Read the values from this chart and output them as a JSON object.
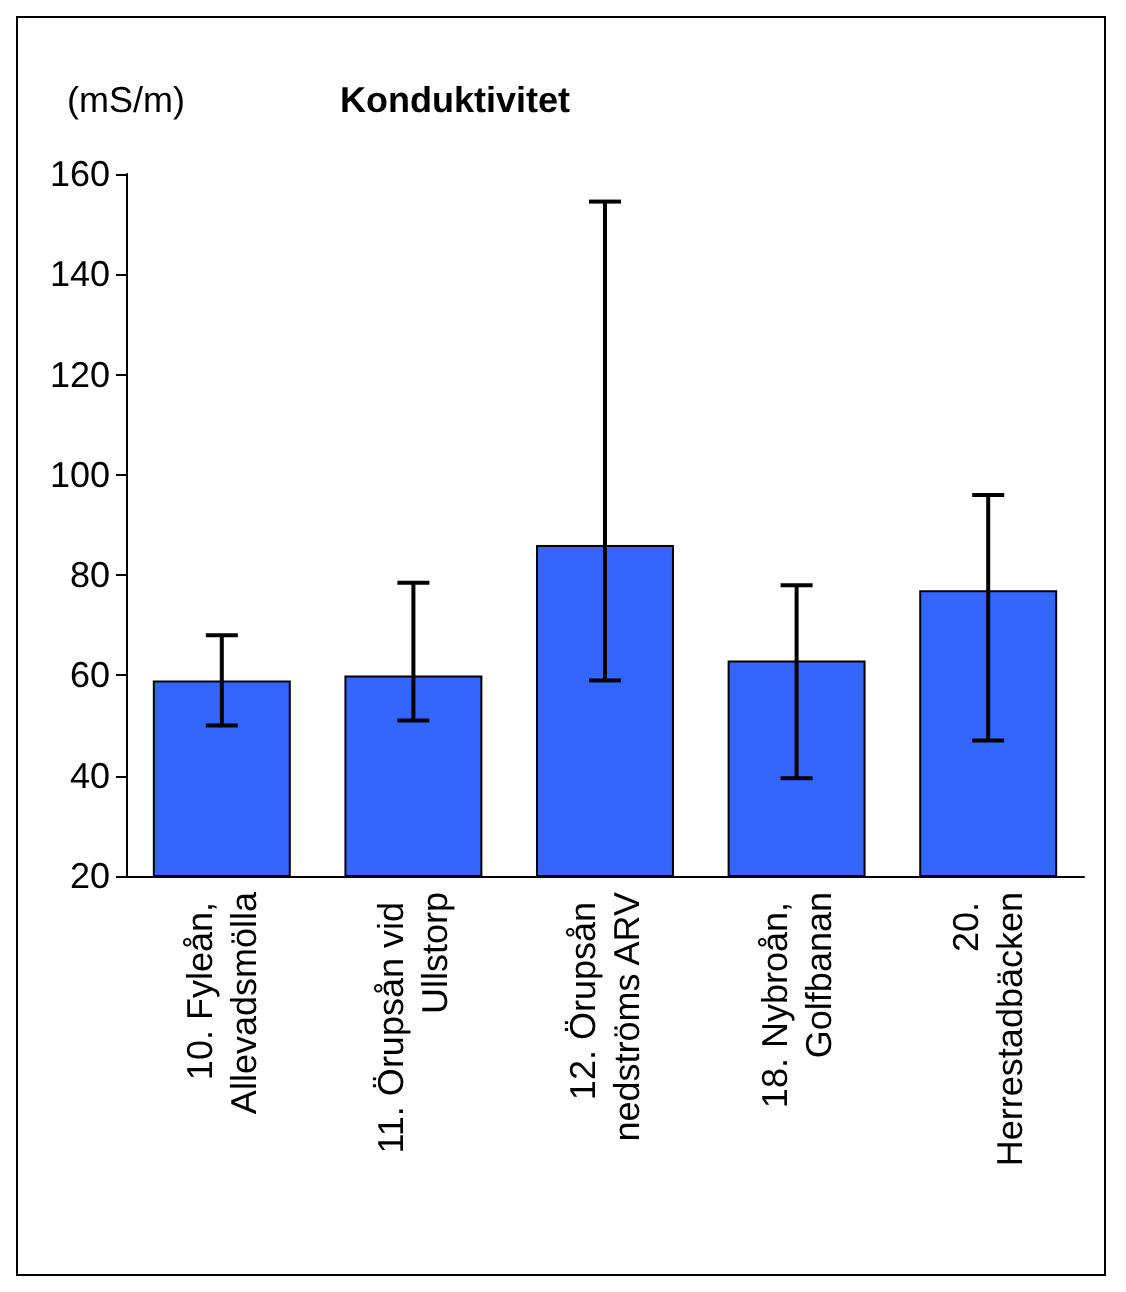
{
  "chart_data": {
    "type": "bar",
    "title": "Konduktivitet",
    "ylabel": "(mS/m)",
    "categories": [
      "10. Fyleån, Allevadsmölla",
      "11. Örupsån vid Ullstorp",
      "12. Örupsån nedströms ARV",
      "18. Nybroån, Golfbanan",
      "20. Herrestadbäcken"
    ],
    "values": [
      59,
      60,
      86,
      63,
      77
    ],
    "errors": [
      [
        50,
        68
      ],
      [
        51,
        78.5
      ],
      [
        59,
        154.5
      ],
      [
        39.5,
        78
      ],
      [
        47,
        96
      ]
    ],
    "color": "#3366ff",
    "ylim": [
      20,
      160
    ],
    "yticks": [
      20,
      40,
      60,
      80,
      100,
      120,
      140,
      160
    ],
    "grid": false
  }
}
